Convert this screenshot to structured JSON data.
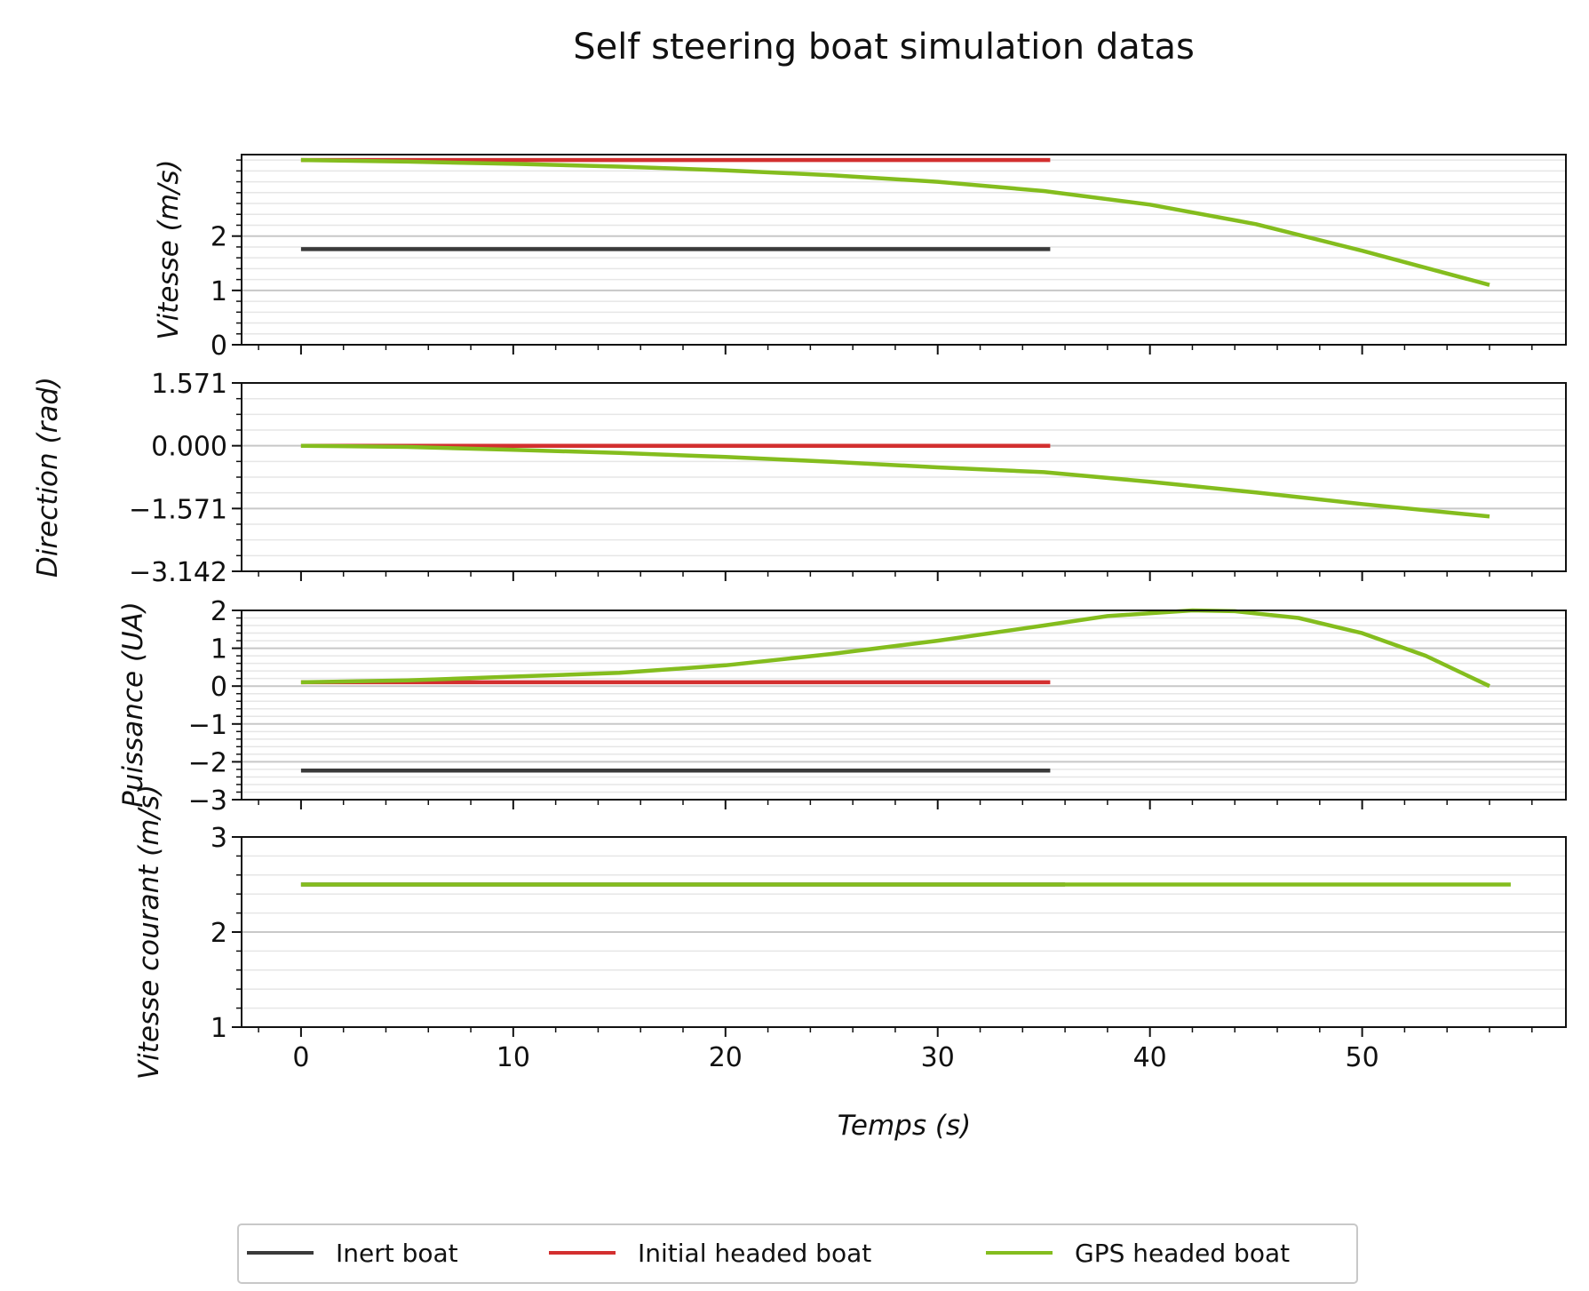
{
  "chart_data": {
    "type": "line",
    "title": "Self steering boat simulation datas",
    "xlabel": "Temps (s)",
    "xlim": [
      -2.8,
      59.6
    ],
    "xticks": [
      0,
      10,
      20,
      30,
      40,
      50
    ],
    "legend": {
      "placement": "bottom-center",
      "entries": [
        "Inert boat",
        "Initial headed boat",
        "GPS headed boat"
      ]
    },
    "colors": {
      "inert": "#3a3a3a",
      "initial": "#d32f2f",
      "gps": "#84bd1e",
      "grid_major": "#c8c8c8",
      "grid_minor": "#e6e6e6"
    },
    "panels": [
      {
        "ylabel": "Vitesse (m/s)",
        "ylim": [
          0,
          3.5
        ],
        "yticks": [
          0,
          1,
          2
        ],
        "ytick_labels": [
          "0",
          "1",
          "2"
        ],
        "minor_step": 0.2,
        "series": [
          {
            "key": "inert",
            "x": [
              0,
              35.3
            ],
            "y": [
              1.76,
              1.76
            ]
          },
          {
            "key": "initial",
            "x": [
              0,
              35.3
            ],
            "y": [
              3.4,
              3.4
            ]
          },
          {
            "key": "gps",
            "x": [
              0,
              5,
              10,
              15,
              20,
              25,
              30,
              35,
              40,
              45,
              50,
              56
            ],
            "y": [
              3.4,
              3.37,
              3.33,
              3.28,
              3.21,
              3.12,
              3.0,
              2.83,
              2.58,
              2.22,
              1.73,
              1.1
            ]
          }
        ]
      },
      {
        "ylabel": "Direction (rad)",
        "ylim": [
          -3.142,
          1.571
        ],
        "yticks": [
          1.571,
          0.0,
          -1.571,
          -3.142
        ],
        "ytick_labels": [
          "1.571",
          "0.000",
          "−1.571",
          "−3.142"
        ],
        "minor_step": 0.3927,
        "series": [
          {
            "key": "initial",
            "x": [
              0,
              35.3
            ],
            "y": [
              0,
              0
            ]
          },
          {
            "key": "gps",
            "x": [
              0,
              5,
              10,
              15,
              20,
              25,
              30,
              35,
              40,
              45,
              50,
              56
            ],
            "y": [
              0,
              -0.03,
              -0.1,
              -0.18,
              -0.28,
              -0.4,
              -0.54,
              -0.66,
              -0.9,
              -1.17,
              -1.46,
              -1.77
            ]
          }
        ]
      },
      {
        "ylabel": "Puissance (UA)",
        "ylim": [
          -3,
          2
        ],
        "yticks": [
          2,
          1,
          0,
          -1,
          -2,
          -3
        ],
        "ytick_labels": [
          "2",
          "1",
          "0",
          "−1",
          "−2",
          "−3"
        ],
        "minor_step": 0.2,
        "series": [
          {
            "key": "inert",
            "x": [
              0,
              35.3
            ],
            "y": [
              -2.23,
              -2.23
            ]
          },
          {
            "key": "initial",
            "x": [
              0,
              35.3
            ],
            "y": [
              0.1,
              0.1
            ]
          },
          {
            "key": "gps",
            "x": [
              0,
              5,
              10,
              15,
              20,
              25,
              30,
              35,
              38,
              42,
              44,
              47,
              50,
              53,
              56
            ],
            "y": [
              0.1,
              0.15,
              0.25,
              0.35,
              0.55,
              0.85,
              1.2,
              1.6,
              1.85,
              2.0,
              1.98,
              1.8,
              1.4,
              0.8,
              0
            ]
          }
        ]
      },
      {
        "ylabel": "Vitesse courant (m/s)",
        "ylim": [
          1,
          3
        ],
        "yticks": [
          1,
          2,
          3
        ],
        "ytick_labels": [
          "1",
          "2",
          "3"
        ],
        "minor_step": 0.2,
        "series": [
          {
            "key": "inert",
            "x": [
              0,
              36
            ],
            "y": [
              2.5,
              2.5
            ]
          },
          {
            "key": "gps",
            "x": [
              0,
              57
            ],
            "y": [
              2.5,
              2.5
            ]
          }
        ]
      }
    ]
  }
}
